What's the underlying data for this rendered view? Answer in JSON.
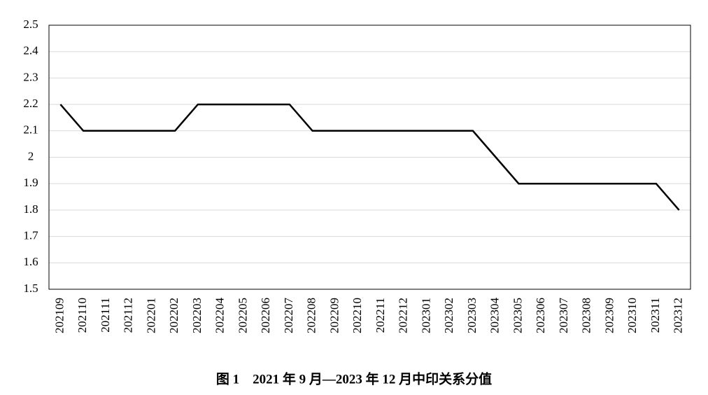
{
  "chart_data": {
    "type": "line",
    "title": "图 1　2021 年 9 月—2023 年 12 月中印关系分值",
    "categories": [
      "202109",
      "202110",
      "202111",
      "202112",
      "202201",
      "202202",
      "202203",
      "202204",
      "202205",
      "202206",
      "202207",
      "202208",
      "202209",
      "202210",
      "202211",
      "202212",
      "202301",
      "202302",
      "202303",
      "202304",
      "202305",
      "202306",
      "202307",
      "202308",
      "202309",
      "202310",
      "202311",
      "202312"
    ],
    "series": [
      {
        "color": "#000000",
        "values": [
          2.2,
          2.1,
          2.1,
          2.1,
          2.1,
          2.1,
          2.2,
          2.2,
          2.2,
          2.2,
          2.2,
          2.1,
          2.1,
          2.1,
          2.1,
          2.1,
          2.1,
          2.1,
          2.1,
          2.0,
          1.9,
          1.9,
          1.9,
          1.9,
          1.9,
          1.9,
          1.9,
          1.8
        ]
      }
    ],
    "ylim": [
      1.5,
      2.5
    ],
    "yticks": [
      1.5,
      1.6,
      1.7,
      1.8,
      1.9,
      2,
      2.1,
      2.2,
      2.3,
      2.4,
      2.5
    ],
    "grid": true
  }
}
